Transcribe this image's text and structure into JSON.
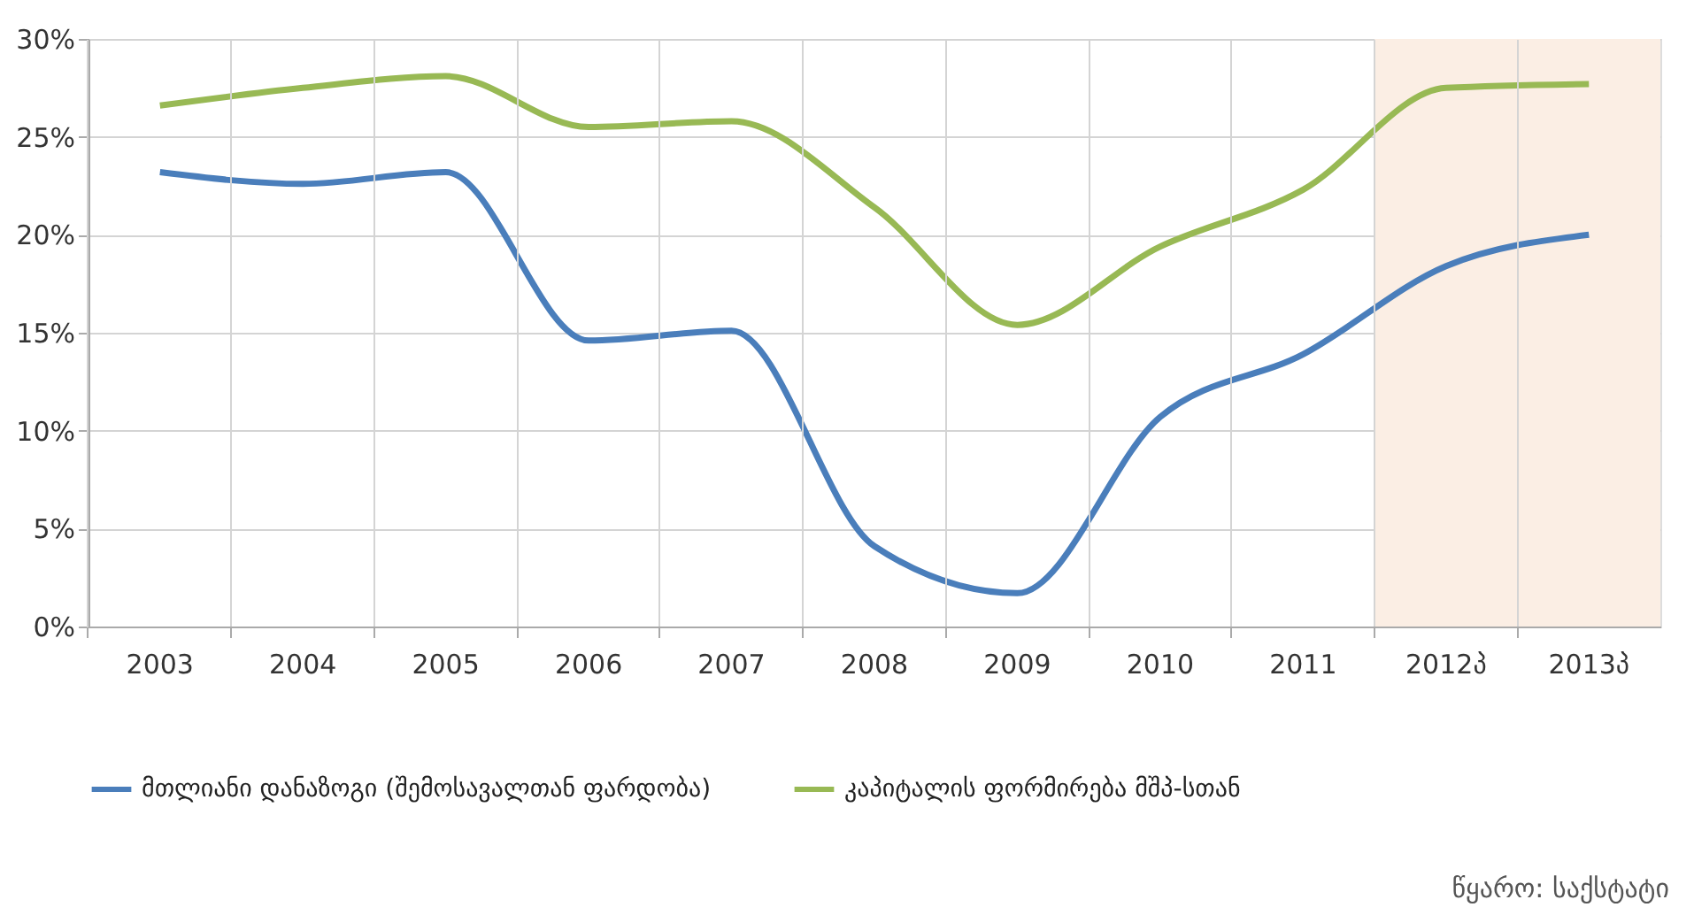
{
  "chart_data": {
    "type": "line",
    "categories": [
      "2003",
      "2004",
      "2005",
      "2006",
      "2007",
      "2008",
      "2009",
      "2010",
      "2011",
      "2012პ",
      "2013პ"
    ],
    "series": [
      {
        "name": "მთლიანი დანაზოგი (შემოსავალთან ფარდობა)",
        "color": "#4a7ebb",
        "values": [
          23.2,
          22.6,
          23.2,
          14.6,
          15.1,
          4.1,
          1.7,
          10.7,
          13.9,
          18.4,
          20.0
        ]
      },
      {
        "name": "კაპიტალის ფორმირება მშპ-სთან",
        "color": "#98b954",
        "values": [
          26.6,
          27.5,
          28.1,
          25.5,
          25.8,
          21.4,
          15.4,
          19.4,
          22.3,
          27.5,
          27.7
        ]
      }
    ],
    "ylim": [
      0,
      30
    ],
    "yticks": [
      {
        "value": 0,
        "label": "0%"
      },
      {
        "value": 5,
        "label": "5%"
      },
      {
        "value": 10,
        "label": "10%"
      },
      {
        "value": 15,
        "label": "15%"
      },
      {
        "value": 20,
        "label": "20%"
      },
      {
        "value": 25,
        "label": "25%"
      },
      {
        "value": 30,
        "label": "30%"
      }
    ],
    "bands": [
      {
        "axis": "x",
        "from": "2012პ",
        "to": "2013პ",
        "color": "#fbeee4"
      }
    ],
    "grid": true,
    "legend": "bottom",
    "marker": "none",
    "line_style": "solid",
    "annotations": [
      "წყარო: საქსტატი"
    ]
  }
}
